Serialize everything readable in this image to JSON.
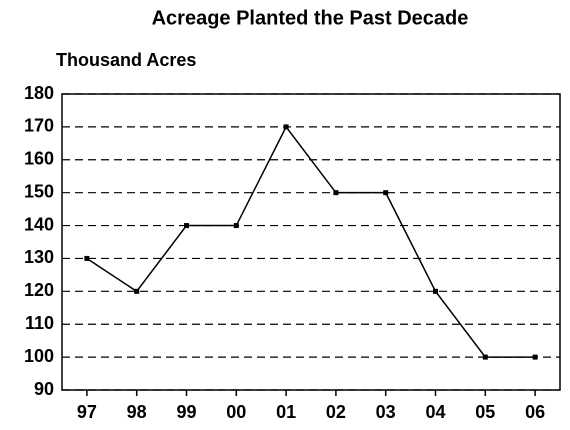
{
  "chart_data": {
    "type": "line",
    "title": "Acreage Planted the Past Decade",
    "y_label": "Thousand Acres",
    "categories": [
      "97",
      "98",
      "99",
      "00",
      "01",
      "02",
      "03",
      "04",
      "05",
      "06"
    ],
    "values": [
      130,
      120,
      140,
      140,
      170,
      150,
      150,
      120,
      100,
      100
    ],
    "color": "#000000",
    "ylim": [
      90,
      180
    ],
    "yticks": [
      90,
      100,
      110,
      120,
      130,
      140,
      150,
      160,
      170,
      180
    ],
    "grid": true
  }
}
